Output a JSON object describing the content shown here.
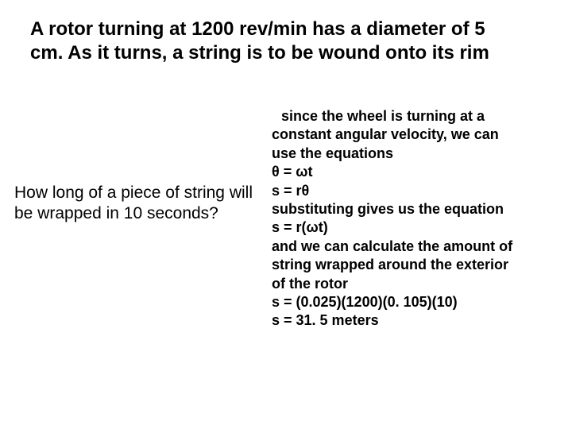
{
  "title": "A rotor turning at 1200 rev/min has a diameter of 5 cm. As it turns, a string is to be wound onto its rim",
  "question": "How long of a piece of string will be wrapped in 10 seconds?",
  "explanation": {
    "line1": "since the wheel is turning at a",
    "line2": "constant angular velocity, we can",
    "line3": "use the equations",
    "line4": "θ = ωt",
    "line5": "s = rθ",
    "line6": "substituting gives us the equation",
    "line7": "s = r(ωt)",
    "line8": "and we can calculate the amount of",
    "line9": "string wrapped around the exterior",
    "line10": "of the rotor",
    "line11": "s = (0.025)(1200)(0. 105)(10)",
    "line12": "s = 31. 5 meters"
  },
  "colors": {
    "background": "#ffffff",
    "text": "#000000"
  },
  "typography": {
    "title_fontsize": 24,
    "question_fontsize": 21,
    "explanation_fontsize": 18,
    "title_weight": "bold",
    "question_weight": "normal",
    "explanation_weight": "bold",
    "font_family": "Arial"
  }
}
